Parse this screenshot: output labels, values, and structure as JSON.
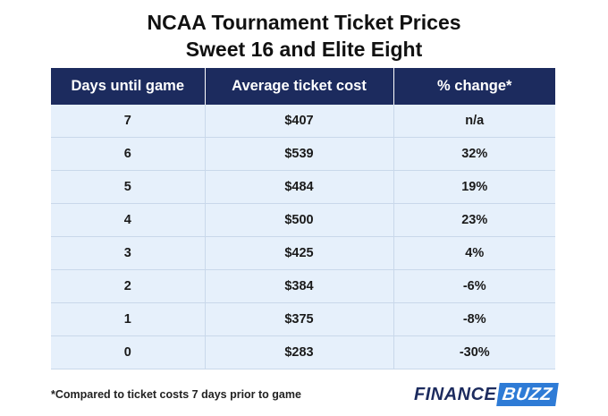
{
  "chart_data": {
    "type": "table",
    "title": "NCAA Tournament Ticket Prices",
    "subtitle": "Sweet 16 and Elite Eight",
    "columns": [
      "Days until game",
      "Average ticket cost",
      "% change*"
    ],
    "rows": [
      [
        "7",
        "$407",
        "n/a"
      ],
      [
        "6",
        "$539",
        "32%"
      ],
      [
        "5",
        "$484",
        "19%"
      ],
      [
        "4",
        "$500",
        "23%"
      ],
      [
        "3",
        "$425",
        "4%"
      ],
      [
        "2",
        "$384",
        "-6%"
      ],
      [
        "1",
        "$375",
        "-8%"
      ],
      [
        "0",
        "$283",
        "-30%"
      ]
    ],
    "footnote": "*Compared to ticket costs 7 days prior to game"
  },
  "logo": {
    "word1": "FINANCE",
    "word2": "BUZZ"
  },
  "colors": {
    "header_bg": "#1c2b5e",
    "cell_bg": "#e6f0fb",
    "logo_accent": "#2e7bd6"
  }
}
